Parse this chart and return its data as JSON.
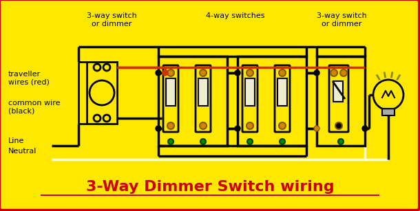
{
  "title": "3-Way Dimmer Switch wiring",
  "bg_color": "#FFE800",
  "border_color": "#CC0000",
  "title_color": "#CC0000",
  "title_fontsize": 16,
  "labels": {
    "traveller": "traveller\nwires (red)",
    "common": "common wire\n(black)",
    "line": "Line",
    "neutral": "Neutral",
    "switch1": "3-way switch\nor dimmer",
    "switch_mid": "4-way switches",
    "switch2": "3-way switch\nor dimmer"
  },
  "label_color": "#000000",
  "wire_black": "#000000",
  "wire_red": "#CC3300",
  "wire_white": "#FFFFFF",
  "switch_box_color": "#000000",
  "terminal_color": "#CC8800",
  "green_color": "#008800",
  "figsize": [
    6.1,
    3.07
  ],
  "dpi": 100
}
